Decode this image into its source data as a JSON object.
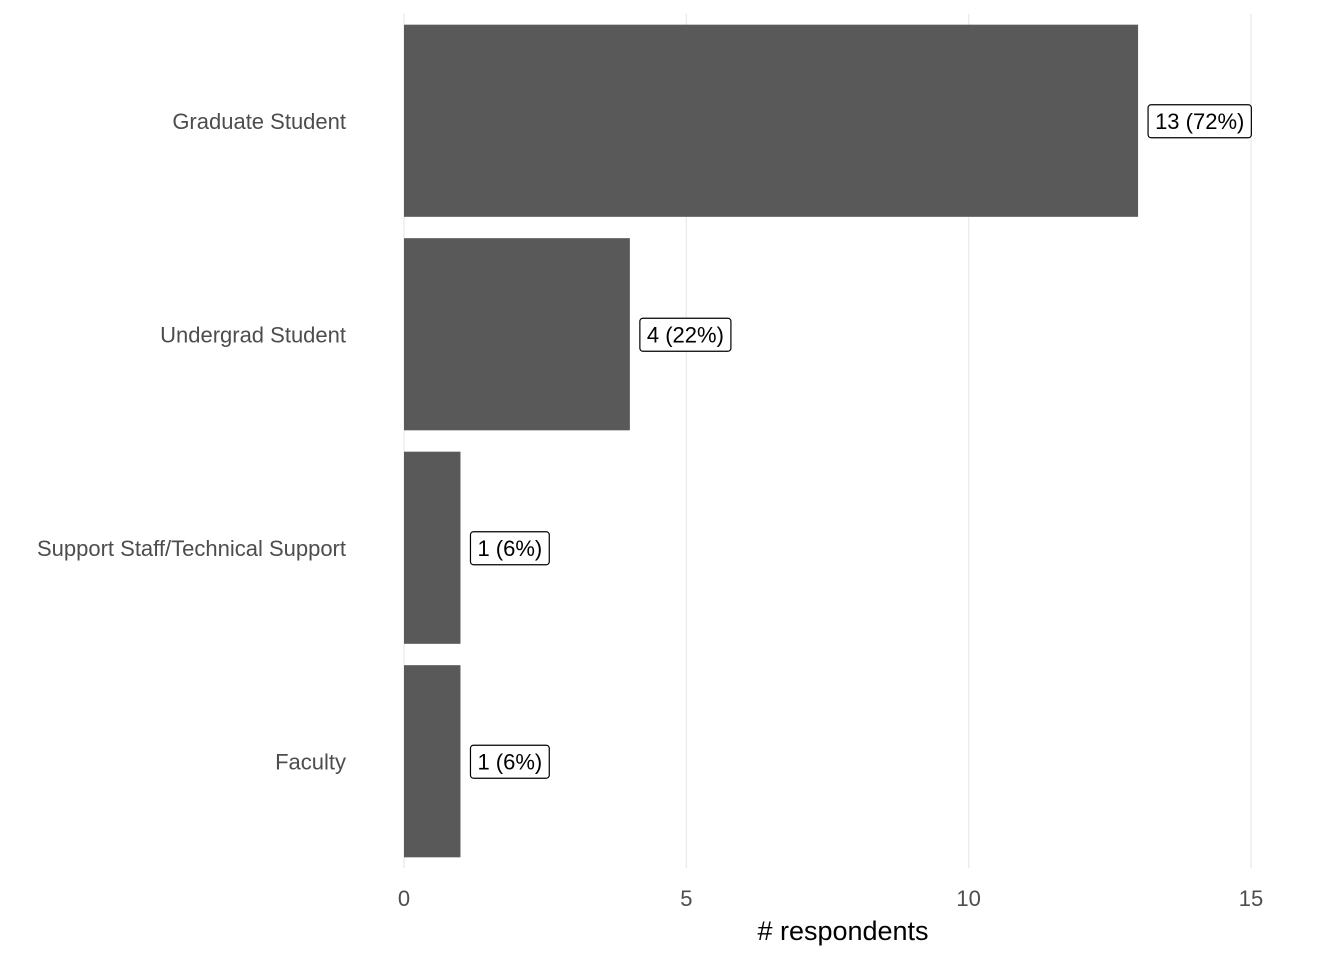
{
  "chart_data": {
    "type": "bar",
    "orientation": "horizontal",
    "categories": [
      "Graduate Student",
      "Undergrad Student",
      "Support Staff/Technical Support",
      "Faculty"
    ],
    "values": [
      13,
      4,
      1,
      1
    ],
    "data_labels": [
      "13 (72%)",
      "4 (22%)",
      "1 (6%)",
      "1 (6%)"
    ],
    "title": "",
    "xlabel": "# respondents",
    "ylabel": "",
    "xlim": [
      0,
      15
    ],
    "x_ticks": [
      0,
      5,
      10,
      15
    ],
    "grid": "vertical major",
    "legend": "none",
    "bar_color": "#595959"
  }
}
